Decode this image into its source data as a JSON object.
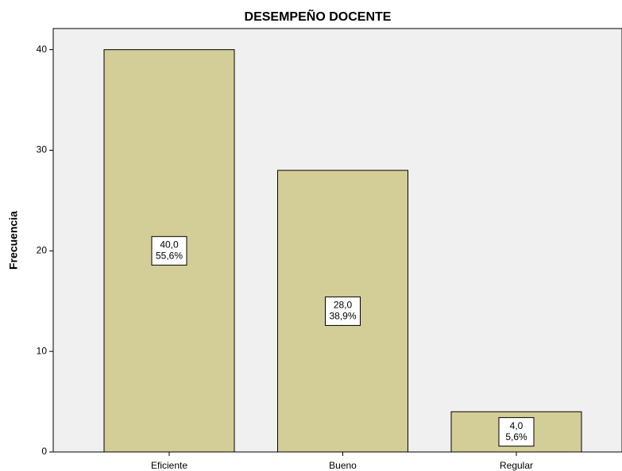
{
  "chart_data": {
    "type": "bar",
    "title": "DESEMPEÑO DOCENTE",
    "y_label": "Frecuencia",
    "categories": [
      "Eficiente",
      "Bueno",
      "Regular"
    ],
    "values": [
      40,
      28,
      4
    ],
    "value_labels": [
      "40,0",
      "28,0",
      "4,0"
    ],
    "percents": [
      55.6,
      38.9,
      5.6
    ],
    "percent_labels": [
      "55,6%",
      "38,9%",
      "5,6%"
    ],
    "color": "#d3ce97",
    "ylim": [
      0,
      42.1
    ],
    "yticks": [
      0,
      10,
      20,
      30,
      40
    ]
  }
}
